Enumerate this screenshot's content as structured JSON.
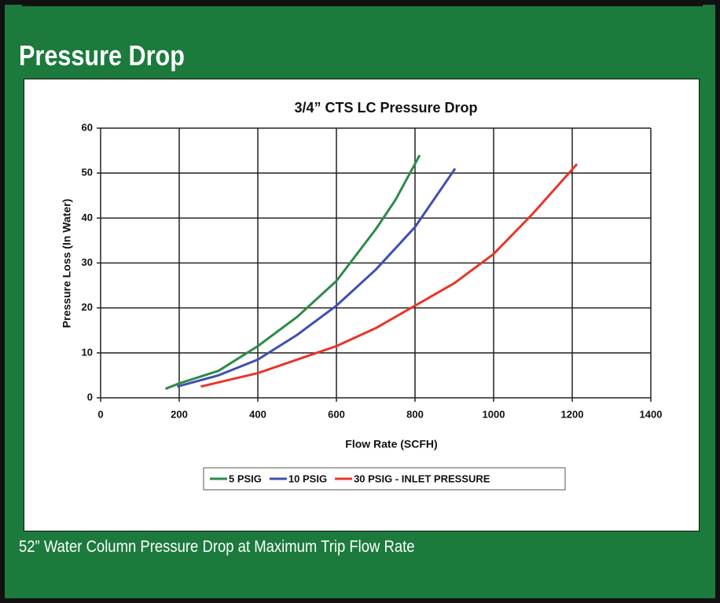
{
  "header": {
    "title": "Pressure Drop"
  },
  "caption": "52” Water Column Pressure Drop at Maximum Trip Flow Rate",
  "chart_data": {
    "type": "line",
    "title": "3/4” CTS LC  Pressure Drop",
    "x_label": "Flow Rate (SCFH)",
    "y_label": "Pressure Loss (In Water)",
    "xlim": [
      0,
      1400
    ],
    "xticks": [
      0,
      200,
      400,
      600,
      800,
      1000,
      1200,
      1400
    ],
    "ylim": [
      0,
      60
    ],
    "yticks": [
      0,
      10,
      20,
      30,
      40,
      50,
      60
    ],
    "grid": true,
    "legend": "bottom",
    "series": [
      {
        "name": "5 PSIG",
        "color": "#2e8b47",
        "x": [
          165,
          200,
          300,
          400,
          500,
          600,
          700,
          750,
          812
        ],
        "values": [
          2,
          3.2,
          6,
          11.5,
          18,
          26,
          37.5,
          44,
          54
        ]
      },
      {
        "name": "10 PSIG",
        "color": "#3f4fb0",
        "x": [
          195,
          300,
          400,
          500,
          600,
          700,
          800,
          902
        ],
        "values": [
          2.5,
          5,
          8.5,
          14,
          20.5,
          28.5,
          38,
          51
        ]
      },
      {
        "name": "30 PSIG - INLET PRESSURE",
        "color": "#e8352a",
        "x": [
          255,
          400,
          500,
          600,
          700,
          800,
          900,
          1000,
          1100,
          1212
        ],
        "values": [
          2.5,
          5.5,
          8.5,
          11.5,
          15.5,
          20.5,
          25.5,
          32,
          41,
          52
        ]
      }
    ]
  }
}
